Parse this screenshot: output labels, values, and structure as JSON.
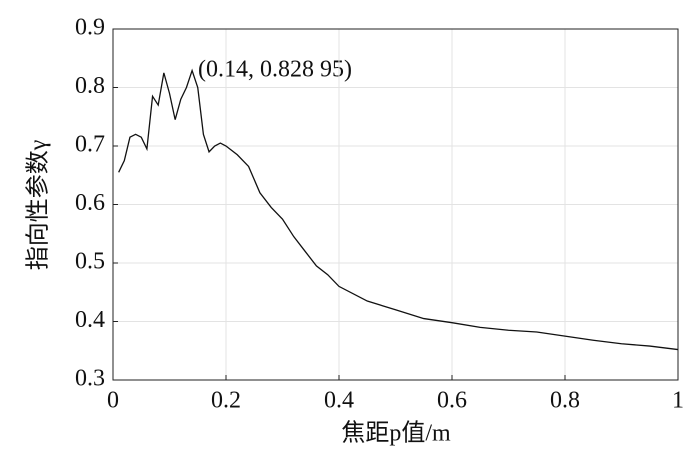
{
  "chart_data": {
    "type": "line",
    "x_label": "焦距p值/m",
    "y_label": "指向性参数γ",
    "annotation": "(0.14, 0.828 95)",
    "series": [
      {
        "name": "γ",
        "color": "#111111",
        "x": [
          0.01,
          0.02,
          0.03,
          0.04,
          0.05,
          0.06,
          0.07,
          0.08,
          0.09,
          0.1,
          0.11,
          0.12,
          0.13,
          0.14,
          0.15,
          0.16,
          0.17,
          0.18,
          0.19,
          0.2,
          0.22,
          0.24,
          0.26,
          0.28,
          0.3,
          0.32,
          0.34,
          0.36,
          0.38,
          0.4,
          0.45,
          0.5,
          0.55,
          0.6,
          0.65,
          0.7,
          0.75,
          0.8,
          0.85,
          0.9,
          0.95,
          1.0
        ],
        "values": [
          0.655,
          0.675,
          0.715,
          0.72,
          0.715,
          0.695,
          0.785,
          0.77,
          0.825,
          0.79,
          0.745,
          0.78,
          0.8,
          0.829,
          0.8,
          0.72,
          0.69,
          0.7,
          0.705,
          0.7,
          0.685,
          0.665,
          0.62,
          0.595,
          0.575,
          0.545,
          0.52,
          0.495,
          0.48,
          0.46,
          0.435,
          0.42,
          0.405,
          0.398,
          0.39,
          0.385,
          0.382,
          0.375,
          0.368,
          0.362,
          0.358,
          0.352
        ]
      }
    ],
    "xlim": [
      0,
      1
    ],
    "ylim": [
      0.3,
      0.9
    ],
    "xticks": [
      0,
      0.2,
      0.4,
      0.6,
      0.8,
      1
    ],
    "yticks": [
      0.3,
      0.4,
      0.5,
      0.6,
      0.7,
      0.8,
      0.9
    ],
    "grid": true
  }
}
